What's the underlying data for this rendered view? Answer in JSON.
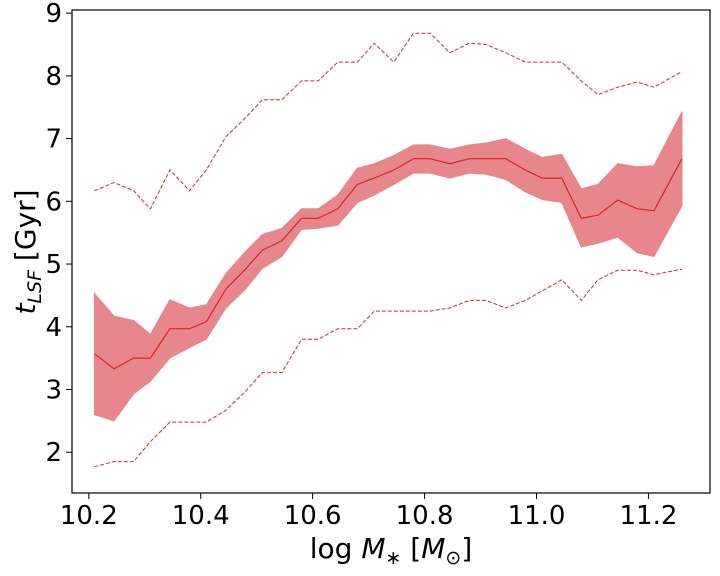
{
  "chart_data": {
    "type": "line",
    "title": "",
    "xlabel": "log M_* [M_sun]",
    "ylabel": "t_LSF [Gyr]",
    "xlim": [
      10.17,
      11.31
    ],
    "ylim": [
      1.35,
      9.05
    ],
    "xticks": [
      "10.2",
      "10.4",
      "10.6",
      "10.8",
      "11.0",
      "11.2"
    ],
    "yticks": [
      "2",
      "3",
      "4",
      "5",
      "6",
      "7",
      "8",
      "9"
    ],
    "colors": {
      "line": "#d62728",
      "band": "#e8878b"
    },
    "x": [
      10.21,
      10.245,
      10.28,
      10.31,
      10.345,
      10.38,
      10.41,
      10.445,
      10.48,
      10.51,
      10.545,
      10.58,
      10.61,
      10.645,
      10.68,
      10.71,
      10.745,
      10.78,
      10.81,
      10.845,
      10.88,
      10.91,
      10.945,
      10.98,
      11.01,
      11.045,
      11.08,
      11.11,
      11.145,
      11.18,
      11.21,
      11.26
    ],
    "series": [
      {
        "name": "median",
        "style": "solid",
        "values": [
          3.57,
          3.33,
          3.5,
          3.5,
          3.97,
          3.97,
          4.08,
          4.6,
          4.92,
          5.22,
          5.37,
          5.73,
          5.73,
          5.88,
          6.27,
          6.37,
          6.5,
          6.68,
          6.68,
          6.6,
          6.68,
          6.68,
          6.68,
          6.5,
          6.37,
          6.37,
          5.73,
          5.78,
          6.02,
          5.88,
          5.85,
          6.68
        ]
      },
      {
        "name": "band_upper",
        "style": "fill",
        "values": [
          4.53,
          4.17,
          4.1,
          3.88,
          4.43,
          4.3,
          4.35,
          4.85,
          5.2,
          5.47,
          5.57,
          5.88,
          5.88,
          6.1,
          6.53,
          6.6,
          6.73,
          6.9,
          6.9,
          6.83,
          6.9,
          6.93,
          7.0,
          6.83,
          6.7,
          6.75,
          6.2,
          6.27,
          6.6,
          6.55,
          6.57,
          7.43
        ]
      },
      {
        "name": "band_lower",
        "style": "fill",
        "values": [
          2.6,
          2.5,
          2.93,
          3.13,
          3.5,
          3.67,
          3.8,
          4.3,
          4.6,
          4.93,
          5.12,
          5.55,
          5.57,
          5.62,
          5.98,
          6.1,
          6.27,
          6.45,
          6.45,
          6.37,
          6.45,
          6.43,
          6.35,
          6.15,
          6.03,
          5.98,
          5.27,
          5.33,
          5.43,
          5.18,
          5.12,
          5.93
        ]
      },
      {
        "name": "upper_envelope",
        "style": "dashed",
        "values": [
          6.17,
          6.3,
          6.17,
          5.88,
          6.5,
          6.17,
          6.5,
          7.03,
          7.33,
          7.62,
          7.62,
          7.92,
          7.92,
          8.22,
          8.22,
          8.52,
          8.22,
          8.68,
          8.68,
          8.37,
          8.52,
          8.5,
          8.37,
          8.22,
          8.22,
          8.22,
          7.92,
          7.7,
          7.82,
          7.9,
          7.82,
          8.07
        ]
      },
      {
        "name": "lower_envelope",
        "style": "dashed",
        "values": [
          1.77,
          1.85,
          1.85,
          2.17,
          2.48,
          2.48,
          2.48,
          2.67,
          2.97,
          3.27,
          3.27,
          3.8,
          3.8,
          3.97,
          3.97,
          4.25,
          4.25,
          4.25,
          4.25,
          4.3,
          4.42,
          4.42,
          4.3,
          4.42,
          4.57,
          4.75,
          4.42,
          4.75,
          4.9,
          4.9,
          4.83,
          4.92
        ]
      }
    ]
  }
}
